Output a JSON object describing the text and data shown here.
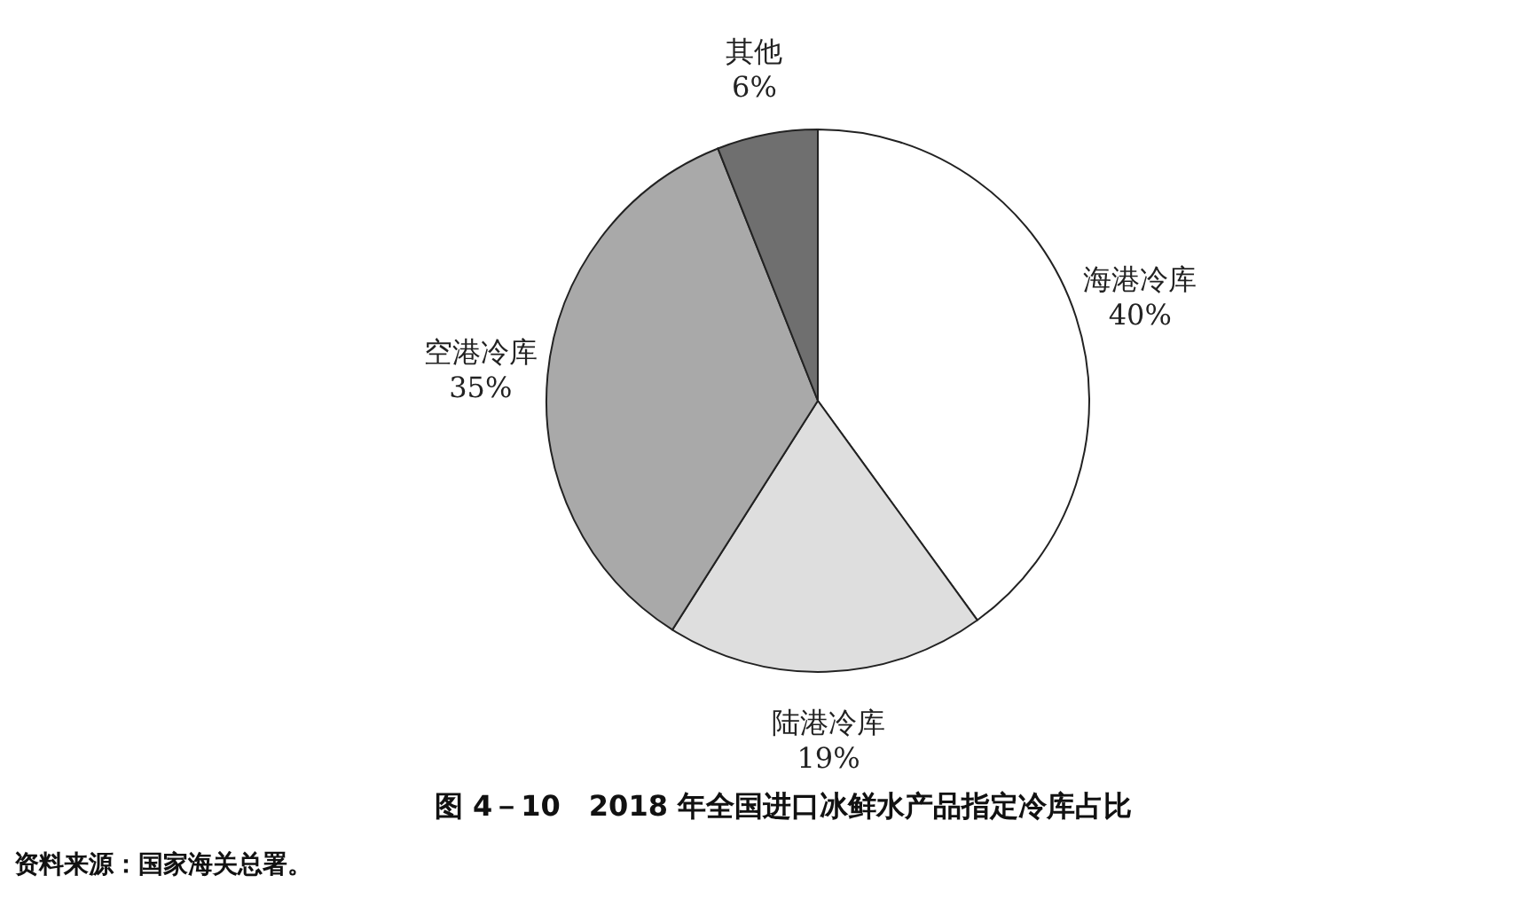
{
  "chart_data": {
    "type": "pie",
    "title": "图 4－10　2018 年全国进口冰鲜水产品指定冷库占比",
    "categories": [
      "海港冷库",
      "陆港冷库",
      "空港冷库",
      "其他"
    ],
    "values": [
      40,
      19,
      35,
      6
    ],
    "colors": [
      "#ffffff",
      "#dedede",
      "#a9a9a9",
      "#6f6f6f"
    ],
    "value_labels": [
      "40%",
      "19%",
      "35%",
      "6%"
    ],
    "annotations": [
      "资料来源：国家海关总署。"
    ]
  }
}
